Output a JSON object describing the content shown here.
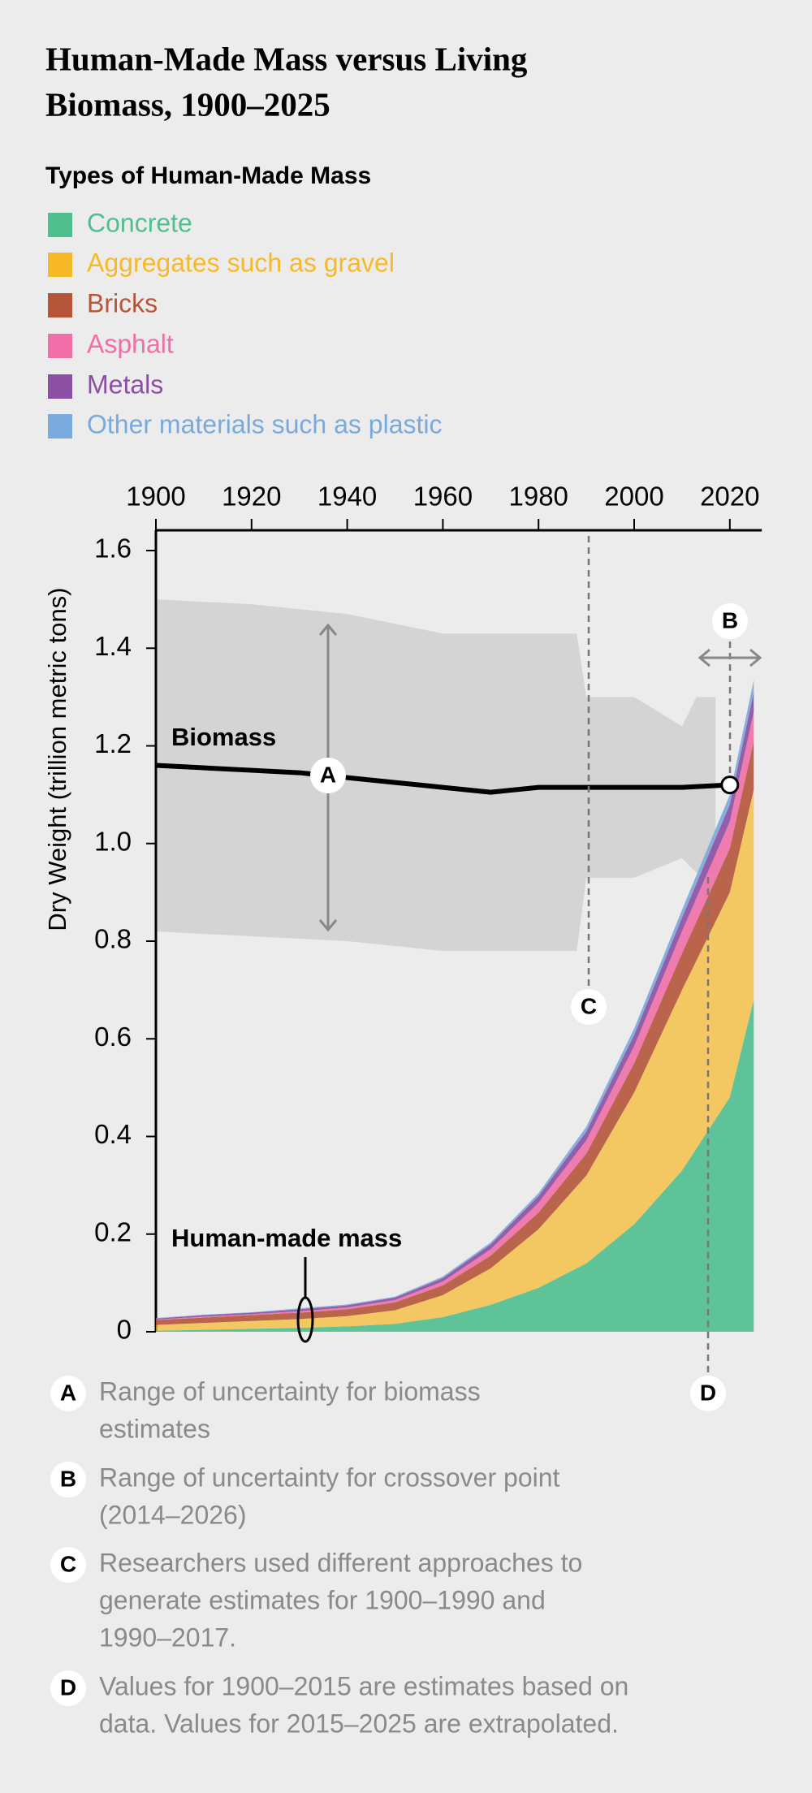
{
  "chart_data": {
    "type": "area",
    "stacked": true,
    "title_lines": [
      "Human-Made Mass versus Living",
      "Biomass, 1900–2025"
    ],
    "legend_title": "Types of Human-Made Mass",
    "y_label": "Dry Weight (trillion metric tons)",
    "x": [
      1900,
      1910,
      1920,
      1930,
      1940,
      1950,
      1960,
      1970,
      1980,
      1990,
      2000,
      2010,
      2020,
      2025
    ],
    "series": [
      {
        "name": "Concrete",
        "color": "#4fbf8f",
        "values": [
          0.002,
          0.004,
          0.006,
          0.008,
          0.011,
          0.016,
          0.03,
          0.055,
          0.09,
          0.14,
          0.22,
          0.33,
          0.48,
          0.68
        ]
      },
      {
        "name": "Aggregates such as gravel",
        "color": "#f7b928",
        "values": [
          0.012,
          0.014,
          0.016,
          0.018,
          0.021,
          0.028,
          0.045,
          0.075,
          0.12,
          0.18,
          0.27,
          0.37,
          0.42,
          0.43
        ]
      },
      {
        "name": "Bricks",
        "color": "#b5553a",
        "values": [
          0.01,
          0.011,
          0.012,
          0.013,
          0.014,
          0.016,
          0.02,
          0.026,
          0.034,
          0.045,
          0.06,
          0.075,
          0.09,
          0.1
        ]
      },
      {
        "name": "Asphalt",
        "color": "#f06fa8",
        "values": [
          0.001,
          0.002,
          0.002,
          0.003,
          0.004,
          0.005,
          0.008,
          0.013,
          0.02,
          0.027,
          0.035,
          0.045,
          0.055,
          0.06
        ]
      },
      {
        "name": "Metals",
        "color": "#8b4fa3",
        "values": [
          0.002,
          0.003,
          0.003,
          0.004,
          0.004,
          0.005,
          0.007,
          0.01,
          0.014,
          0.018,
          0.023,
          0.028,
          0.035,
          0.04
        ]
      },
      {
        "name": "Other materials such as plastic",
        "color": "#7aaadd",
        "values": [
          0.001,
          0.001,
          0.001,
          0.002,
          0.002,
          0.002,
          0.003,
          0.004,
          0.006,
          0.01,
          0.013,
          0.016,
          0.02,
          0.025
        ]
      }
    ],
    "area_label": "Human-made mass",
    "biomass": {
      "name": "Biomass",
      "color": "#000000",
      "values": [
        1.16,
        1.155,
        1.15,
        1.145,
        1.135,
        1.125,
        1.115,
        1.105,
        1.115,
        1.115,
        1.115,
        1.115,
        1.12,
        null
      ]
    },
    "biomass_range": {
      "color": "#d4d4d4",
      "x": [
        1900,
        1920,
        1940,
        1960,
        1988,
        1990,
        2000,
        2010,
        2013,
        2015,
        2017
      ],
      "low": [
        0.82,
        0.81,
        0.8,
        0.78,
        0.78,
        0.93,
        0.93,
        0.97,
        0.94,
        0.94,
        0.94
      ],
      "high": [
        1.5,
        1.49,
        1.47,
        1.43,
        1.43,
        1.3,
        1.3,
        1.24,
        1.3,
        1.3,
        1.3
      ]
    },
    "xlim": [
      1900,
      2026
    ],
    "ylim": [
      0,
      1.6
    ],
    "xticks": [
      1900,
      1920,
      1940,
      1960,
      1980,
      2000,
      2020
    ],
    "yticks": [
      0,
      0.2,
      0.4,
      0.6,
      0.8,
      {
        "value": 1,
        "label": "1.0"
      },
      1.2,
      1.4,
      1.6
    ],
    "notes": [
      {
        "label": "A",
        "lines": [
          "Range of uncertainty for biomass",
          "estimates"
        ]
      },
      {
        "label": "B",
        "lines": [
          "Range of uncertainty for crossover point",
          "(2014–2026)"
        ]
      },
      {
        "label": "C",
        "lines": [
          "Researchers used different approaches to",
          "generate estimates for 1900–1990 and",
          "1990–2017."
        ]
      },
      {
        "label": "D",
        "lines": [
          "Values for 1900–2015 are estimates based on",
          "data. Values for 2015–2025 are extrapolated."
        ]
      }
    ]
  }
}
